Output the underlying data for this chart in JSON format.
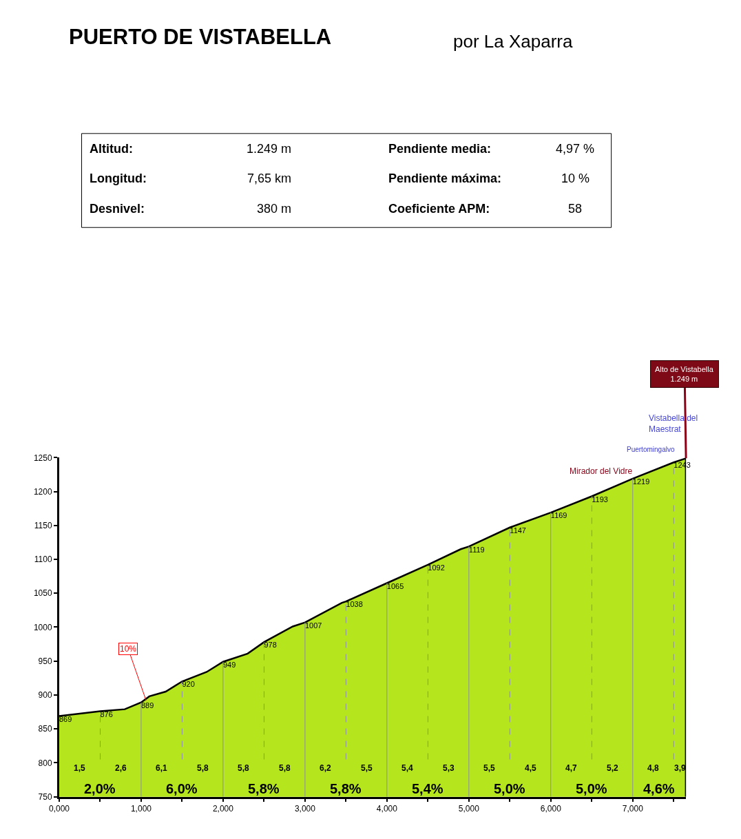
{
  "chart_data": [
    {
      "type": "other",
      "title": "PUERTO DE VISTABELLA",
      "subtitle": "por La Xaparra",
      "annotations": [
        "Altitud:",
        "1.249 m",
        "Pendiente media:",
        "4,97 %",
        "Longitud:",
        "7,65 km",
        "Pendiente máxima:",
        "10 %",
        "Desnivel:",
        "380 m",
        "Coeficiente APM:",
        "58"
      ]
    },
    {
      "type": "area",
      "color": "#b5e61d",
      "x": [
        0,
        0.5,
        0.8,
        1,
        1.1,
        1.3,
        1.5,
        1.8,
        2,
        2.3,
        2.5,
        2.85,
        3,
        3.45,
        3.5,
        4,
        4.5,
        4.9,
        5,
        5.5,
        6,
        6.5,
        7,
        7.5,
        7.65
      ],
      "values": [
        869,
        876,
        879,
        889,
        898,
        905,
        920,
        934,
        949,
        961,
        978,
        1001,
        1007,
        1036,
        1038,
        1065,
        1092,
        1115,
        1119,
        1147,
        1169,
        1193,
        1219,
        1243,
        1249
      ],
      "value_labels": [
        "869",
        "876",
        null,
        "889",
        null,
        null,
        "920",
        null,
        "949",
        null,
        "978",
        null,
        "1007",
        null,
        "1038",
        "1065",
        "1092",
        null,
        "1119",
        "1147",
        "1169",
        "1193",
        "1219",
        "1243",
        null
      ],
      "xlim": [
        0,
        7.65
      ],
      "ylim": [
        750,
        1250
      ],
      "xticks": [
        {
          "value": 0,
          "label": "0,000"
        },
        {
          "value": 0.5,
          "label": null
        },
        {
          "value": 1,
          "label": "1,000"
        },
        {
          "value": 1.5,
          "label": null
        },
        {
          "value": 2,
          "label": "2,000"
        },
        {
          "value": 2.5,
          "label": null
        },
        {
          "value": 3,
          "label": "3,000"
        },
        {
          "value": 3.5,
          "label": null
        },
        {
          "value": 4,
          "label": "4,000"
        },
        {
          "value": 4.5,
          "label": null
        },
        {
          "value": 5,
          "label": "5,000"
        },
        {
          "value": 5.5,
          "label": null
        },
        {
          "value": 6,
          "label": "6,000"
        },
        {
          "value": 6.5,
          "label": null
        },
        {
          "value": 7,
          "label": "7,000"
        },
        {
          "value": 7.5,
          "label": null
        }
      ],
      "yticks": [
        750,
        800,
        850,
        900,
        950,
        1000,
        1050,
        1100,
        1150,
        1200,
        1250
      ],
      "grid": "x",
      "annotations": [
        {
          "text": "10%",
          "x": 1.06,
          "y": 892
        },
        {
          "text": "Alto de Vistabella\n1.249 m",
          "x": 7.65,
          "y": 1249
        },
        {
          "text": "Vistabella del\nMaestrat",
          "x": 7.65,
          "y": 1249
        },
        {
          "text": "Puertomingalvo",
          "x": 7.5,
          "y": 1243
        },
        {
          "text": "Mirador del Vidre",
          "x": 7,
          "y": 1219
        },
        "1,5",
        "2,6",
        "6,1",
        "5,8",
        "5,8",
        "5,8",
        "6,2",
        "5,5",
        "5,4",
        "5,3",
        "5,5",
        "4,5",
        "4,7",
        "5,2",
        "4,8",
        "3,9",
        "2,0%",
        "6,0%",
        "5,8%",
        "5,8%",
        "5,4%",
        "5,0%",
        "5,0%",
        "4,6%"
      ]
    }
  ]
}
